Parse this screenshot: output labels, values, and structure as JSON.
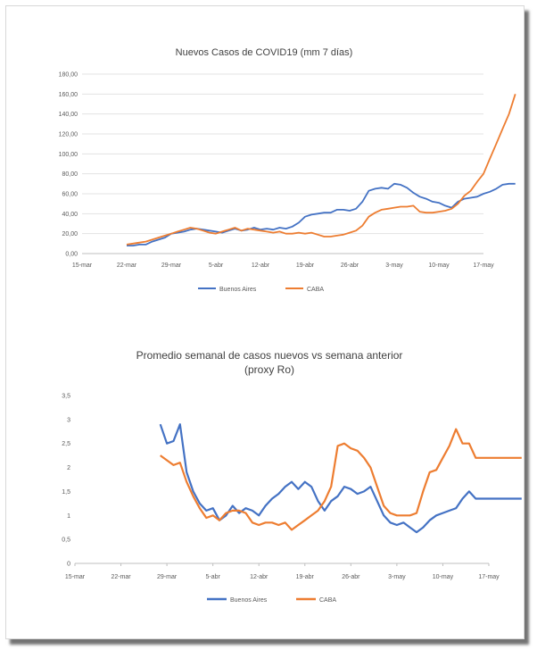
{
  "charts": [
    {
      "type": "line",
      "title": "Nuevos Casos de COVID19 (mm 7 días)",
      "subtitle": "",
      "ylim": [
        0,
        180
      ],
      "y_ticks": [
        "0,00",
        "20,00",
        "40,00",
        "60,00",
        "80,00",
        "100,00",
        "120,00",
        "140,00",
        "160,00",
        "180,00"
      ],
      "x_ticks": [
        "15-mar",
        "22-mar",
        "29-mar",
        "5-abr",
        "12-abr",
        "19-abr",
        "26-abr",
        "3-may",
        "10-may",
        "17-may"
      ],
      "legend": {
        "placement": "bottom",
        "items": [
          "Buenos Aires",
          "CABA"
        ]
      },
      "colors": {
        "Buenos Aires": "#4472c4",
        "CABA": "#ed7d31"
      },
      "x_day_start": 15,
      "series": [
        {
          "name": "Buenos Aires",
          "x": [
            22,
            23,
            24,
            25,
            26,
            27,
            28,
            29,
            30,
            31,
            32,
            33,
            34,
            35,
            36,
            37,
            38,
            39,
            40,
            41,
            42,
            43,
            44,
            45,
            46,
            47,
            48,
            49,
            50,
            51,
            52,
            53,
            54,
            55,
            56,
            57,
            58,
            59,
            60,
            61,
            62,
            63,
            64,
            65,
            66,
            67,
            68,
            69,
            70,
            71,
            72,
            73,
            74,
            75,
            76,
            77,
            78,
            79,
            80,
            81,
            82,
            83
          ],
          "values": [
            8,
            8,
            9,
            9,
            12,
            14,
            16,
            20,
            21,
            22,
            24,
            25,
            24,
            23,
            22,
            21,
            23,
            25,
            23,
            24,
            26,
            24,
            25,
            24,
            26,
            25,
            27,
            31,
            37,
            39,
            40,
            41,
            41,
            44,
            44,
            43,
            45,
            52,
            63,
            65,
            66,
            65,
            70,
            69,
            66,
            61,
            57,
            55,
            52,
            51,
            48,
            46,
            52,
            55,
            56,
            57,
            60,
            62,
            65,
            69,
            70,
            70
          ]
        },
        {
          "name": "CABA",
          "x": [
            22,
            23,
            24,
            25,
            26,
            27,
            28,
            29,
            30,
            31,
            32,
            33,
            34,
            35,
            36,
            37,
            38,
            39,
            40,
            41,
            42,
            43,
            44,
            45,
            46,
            47,
            48,
            49,
            50,
            51,
            52,
            53,
            54,
            55,
            56,
            57,
            58,
            59,
            60,
            61,
            62,
            63,
            64,
            65,
            66,
            67,
            68,
            69,
            70,
            71,
            72,
            73,
            74,
            75,
            76,
            77,
            78,
            79,
            80,
            81,
            82,
            83
          ],
          "values": [
            9,
            10,
            11,
            12,
            14,
            16,
            18,
            20,
            22,
            24,
            26,
            25,
            23,
            21,
            20,
            22,
            24,
            26,
            23,
            25,
            24,
            23,
            22,
            21,
            22,
            20,
            20,
            21,
            20,
            21,
            19,
            17,
            17,
            18,
            19,
            21,
            23,
            28,
            37,
            41,
            44,
            45,
            46,
            47,
            47,
            48,
            42,
            41,
            41,
            42,
            43,
            45,
            50,
            58,
            63,
            72,
            80,
            95,
            110,
            125,
            140,
            160
          ]
        }
      ]
    },
    {
      "type": "line",
      "title": "Promedio semanal de casos nuevos vs semana anterior",
      "subtitle": "(proxy Ro)",
      "ylim": [
        0,
        3.5
      ],
      "y_ticks": [
        "0",
        "0,5",
        "1",
        "1,5",
        "2",
        "2,5",
        "3",
        "3,5"
      ],
      "x_ticks": [
        "15-mar",
        "22-mar",
        "29-mar",
        "5-abr",
        "12-abr",
        "19-abr",
        "26-abr",
        "3-may",
        "10-may",
        "17-may"
      ],
      "legend": {
        "placement": "bottom",
        "items": [
          "Buenos Aires",
          "CABA"
        ]
      },
      "colors": {
        "Buenos Aires": "#4472c4",
        "CABA": "#ed7d31"
      },
      "x_day_start": 15,
      "series": [
        {
          "name": "Buenos Aires",
          "x": [
            28,
            29,
            30,
            31,
            32,
            33,
            34,
            35,
            36,
            37,
            38,
            39,
            40,
            41,
            42,
            43,
            44,
            45,
            46,
            47,
            48,
            49,
            50,
            51,
            52,
            53,
            54,
            55,
            56,
            57,
            58,
            59,
            60,
            61,
            62,
            63,
            64,
            65,
            66,
            67,
            68,
            69,
            70,
            71,
            72,
            73,
            74,
            75,
            76,
            77,
            78,
            79,
            80,
            81,
            82,
            83
          ],
          "values": [
            2.9,
            2.5,
            2.55,
            2.9,
            1.9,
            1.5,
            1.25,
            1.1,
            1.15,
            0.9,
            1.0,
            1.2,
            1.05,
            1.15,
            1.1,
            1.0,
            1.2,
            1.35,
            1.45,
            1.6,
            1.7,
            1.55,
            1.7,
            1.6,
            1.3,
            1.1,
            1.3,
            1.4,
            1.6,
            1.55,
            1.45,
            1.5,
            1.6,
            1.3,
            1.0,
            0.85,
            0.8,
            0.85,
            0.75,
            0.65,
            0.75,
            0.9,
            1.0,
            1.05,
            1.1,
            1.15,
            1.35,
            1.5,
            1.35,
            1.35,
            1.35,
            1.35,
            1.35,
            1.35,
            1.35,
            1.35
          ]
        },
        {
          "name": "CABA",
          "x": [
            28,
            29,
            30,
            31,
            32,
            33,
            34,
            35,
            36,
            37,
            38,
            39,
            40,
            41,
            42,
            43,
            44,
            45,
            46,
            47,
            48,
            49,
            50,
            51,
            52,
            53,
            54,
            55,
            56,
            57,
            58,
            59,
            60,
            61,
            62,
            63,
            64,
            65,
            66,
            67,
            68,
            69,
            70,
            71,
            72,
            73,
            74,
            75,
            76,
            77,
            78,
            79,
            80,
            81,
            82,
            83
          ],
          "values": [
            2.25,
            2.15,
            2.05,
            2.1,
            1.7,
            1.4,
            1.15,
            0.95,
            1.0,
            0.9,
            1.05,
            1.1,
            1.1,
            1.05,
            0.85,
            0.8,
            0.85,
            0.85,
            0.8,
            0.85,
            0.7,
            0.8,
            0.9,
            1.0,
            1.1,
            1.3,
            1.6,
            2.45,
            2.5,
            2.4,
            2.35,
            2.2,
            2.0,
            1.6,
            1.2,
            1.05,
            1.0,
            1.0,
            1.0,
            1.05,
            1.5,
            1.9,
            1.95,
            2.2,
            2.45,
            2.8,
            2.5,
            2.5,
            2.2,
            2.2,
            2.2,
            2.2,
            2.2,
            2.2,
            2.2,
            2.2
          ]
        }
      ]
    }
  ]
}
